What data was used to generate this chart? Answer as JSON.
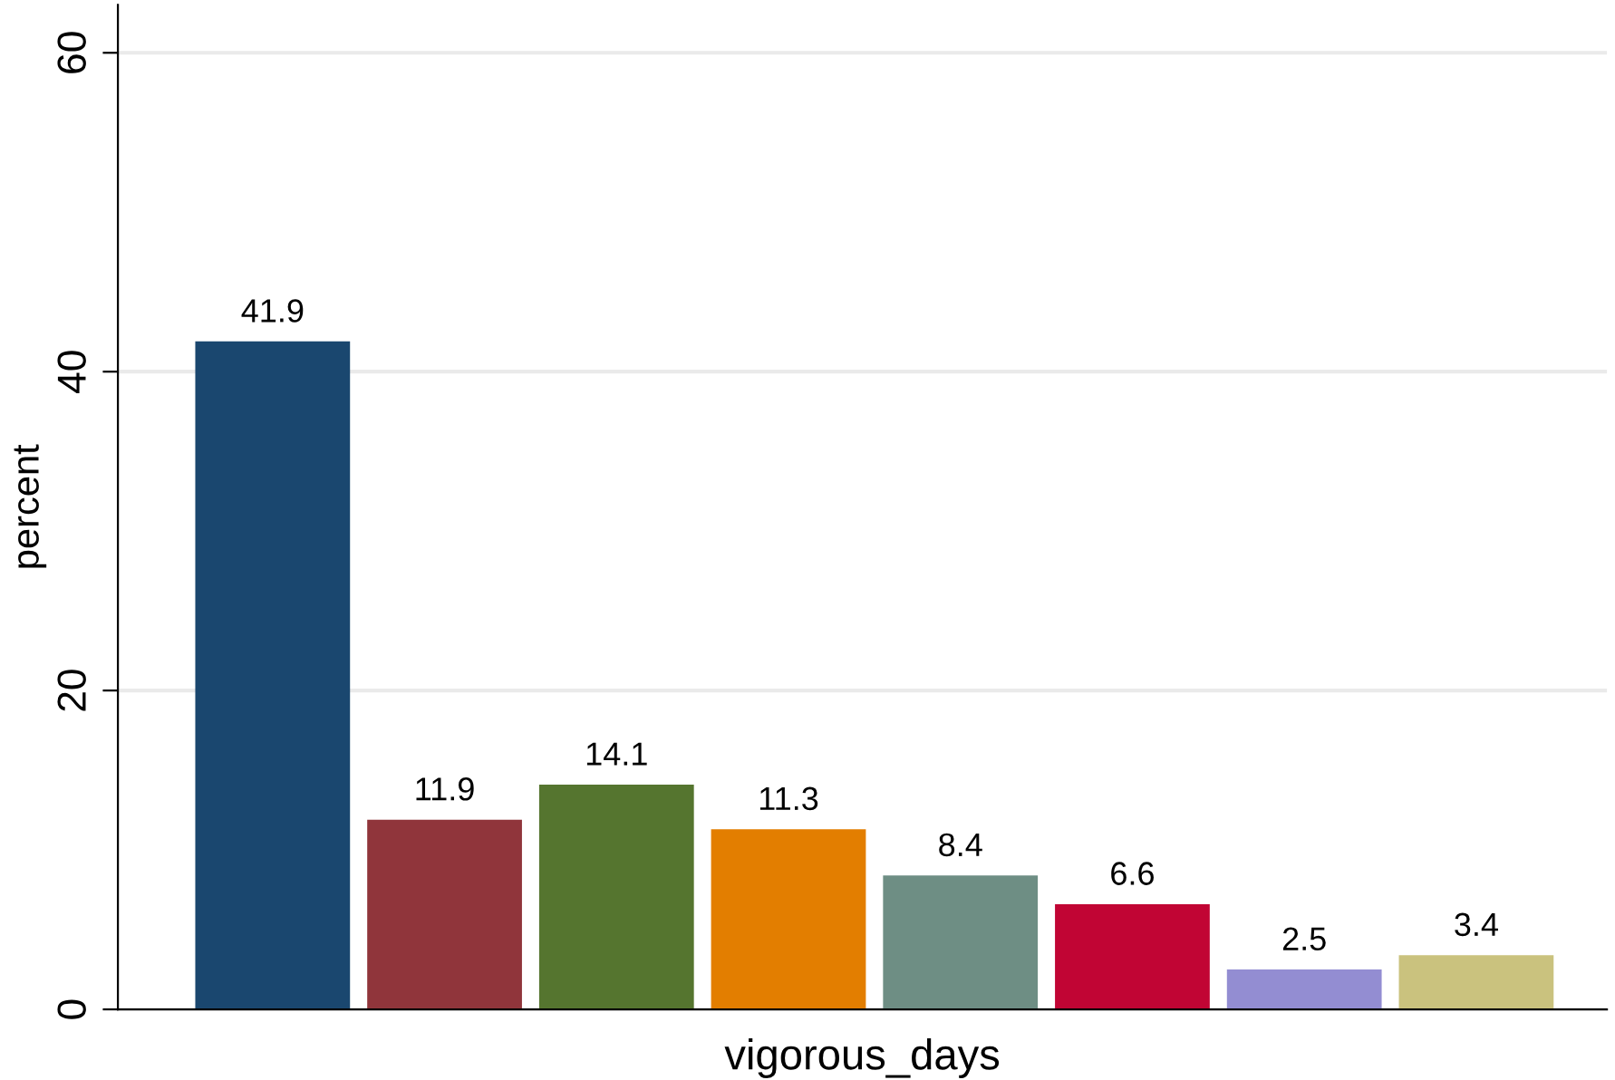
{
  "chart_data": {
    "type": "bar",
    "xlabel": "vigorous_days",
    "ylabel": "percent",
    "categories": [
      null,
      null,
      null,
      null,
      null,
      null,
      null,
      null
    ],
    "values": [
      41.9,
      11.9,
      14.1,
      11.3,
      8.4,
      6.6,
      2.5,
      3.4
    ],
    "colors": [
      "#1a476f",
      "#90353b",
      "#55752f",
      "#e37e00",
      "#6e8e84",
      "#c10534",
      "#938dd2",
      "#cac27e"
    ],
    "ylim": [
      0,
      63
    ],
    "yticks": [
      0,
      20,
      40,
      60
    ],
    "grid": "y",
    "data_labels": true
  }
}
